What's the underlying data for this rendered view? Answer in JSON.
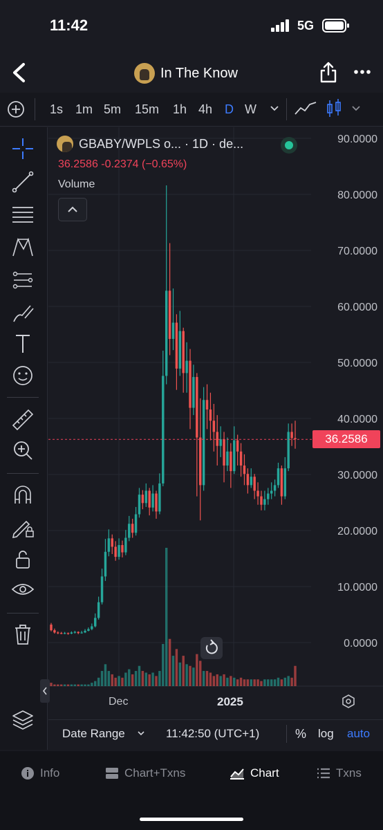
{
  "status": {
    "time": "11:42",
    "network": "5G"
  },
  "header": {
    "title": "In The Know"
  },
  "timeframes": [
    "1s",
    "1m",
    "5m",
    "15m",
    "1h",
    "4h",
    "D",
    "W"
  ],
  "active_timeframe": "D",
  "symbol_line": "GBABY/WPLS o... · 1D · de...",
  "price_line": "36.2586  -0.2374 (−0.65%)",
  "volume_label": "Volume",
  "current_price": "36.2586",
  "x_labels": {
    "dec": "Dec",
    "year": "2025"
  },
  "bottom": {
    "date_range": "Date Range",
    "time": "11:42:50 (UTC+1)",
    "percent": "%",
    "log": "log",
    "auto": "auto"
  },
  "tabs": [
    {
      "label": "Info",
      "icon": "info-icon"
    },
    {
      "label": "Chart+Txns",
      "icon": "split-icon"
    },
    {
      "label": "Chart",
      "icon": "chart-icon"
    },
    {
      "label": "Txns",
      "icon": "list-icon"
    }
  ],
  "active_tab": "Chart",
  "colors": {
    "up": "#26a69a",
    "down": "#ef5350",
    "accent": "#3d7bff",
    "price": "#f0435a"
  },
  "chart_data": {
    "type": "candlestick",
    "y_ticks": [
      "90.0000",
      "80.0000",
      "70.0000",
      "60.0000",
      "50.0000",
      "40.0000",
      "30.0000",
      "20.0000",
      "10.0000",
      "0.0000"
    ],
    "ylim": [
      0,
      90
    ],
    "candles": [
      [
        3.2,
        2.2,
        3.5,
        2.0
      ],
      [
        2.2,
        1.8,
        2.5,
        1.6
      ],
      [
        1.8,
        1.7,
        2.0,
        1.5
      ],
      [
        1.7,
        1.6,
        1.9,
        1.5
      ],
      [
        1.6,
        1.7,
        1.9,
        1.5
      ],
      [
        1.7,
        1.6,
        1.8,
        1.4
      ],
      [
        1.6,
        1.8,
        2.0,
        1.5
      ],
      [
        1.8,
        1.9,
        2.1,
        1.6
      ],
      [
        1.9,
        1.7,
        2.0,
        1.5
      ],
      [
        1.7,
        1.8,
        2.1,
        1.6
      ],
      [
        1.8,
        2.1,
        2.4,
        1.7
      ],
      [
        2.1,
        2.4,
        2.7,
        2.0
      ],
      [
        2.4,
        2.9,
        3.4,
        2.2
      ],
      [
        2.9,
        4.4,
        5.2,
        2.7
      ],
      [
        4.4,
        7.2,
        8.2,
        4.1
      ],
      [
        7.2,
        11.8,
        13.2,
        6.8
      ],
      [
        11.8,
        16.2,
        18.5,
        11.0
      ],
      [
        16.2,
        18.6,
        20.2,
        15.4
      ],
      [
        18.6,
        17.1,
        19.3,
        15.8
      ],
      [
        17.1,
        15.3,
        18.1,
        14.6
      ],
      [
        15.3,
        17.4,
        18.6,
        14.8
      ],
      [
        17.4,
        16.1,
        18.2,
        15.2
      ],
      [
        16.1,
        18.7,
        20.1,
        15.6
      ],
      [
        18.7,
        21.2,
        22.6,
        18.1
      ],
      [
        21.2,
        19.6,
        22.1,
        18.7
      ],
      [
        19.6,
        22.9,
        24.2,
        19.1
      ],
      [
        22.9,
        26.4,
        27.6,
        22.3
      ],
      [
        26.4,
        24.9,
        27.2,
        23.8
      ],
      [
        24.9,
        27.1,
        28.4,
        24.2
      ],
      [
        27.1,
        24.1,
        27.6,
        22.7
      ],
      [
        24.1,
        26.6,
        28.1,
        23.4
      ],
      [
        26.6,
        23.4,
        27.1,
        22.1
      ],
      [
        23.4,
        28.4,
        30.2,
        22.9
      ],
      [
        28.4,
        47.6,
        52.1,
        27.9
      ],
      [
        47.6,
        62.8,
        81.6,
        46.1
      ],
      [
        62.8,
        54.2,
        71.3,
        51.3
      ],
      [
        54.2,
        57.1,
        63.2,
        52.2
      ],
      [
        57.1,
        48.9,
        58.6,
        45.1
      ],
      [
        48.9,
        55.6,
        59.2,
        47.6
      ],
      [
        55.6,
        48.1,
        56.2,
        44.6
      ],
      [
        48.1,
        50.3,
        53.6,
        44.6
      ],
      [
        50.3,
        41.9,
        52.4,
        38.1
      ],
      [
        41.9,
        47.4,
        49.6,
        40.6
      ],
      [
        47.4,
        36.6,
        48.1,
        26.1
      ],
      [
        36.6,
        28.1,
        43.6,
        21.8
      ],
      [
        28.1,
        43.3,
        45.6,
        27.1
      ],
      [
        43.3,
        41.6,
        46.1,
        38.1
      ],
      [
        41.6,
        39.6,
        44.6,
        36.1
      ],
      [
        39.6,
        37.6,
        42.6,
        34.1
      ],
      [
        37.6,
        35.1,
        40.6,
        31.6
      ],
      [
        35.1,
        36.3,
        38.6,
        33.1
      ],
      [
        36.3,
        31.6,
        37.6,
        28.6
      ],
      [
        31.6,
        34.1,
        36.6,
        30.6
      ],
      [
        34.1,
        30.6,
        35.6,
        27.6
      ],
      [
        30.6,
        36.1,
        38.6,
        30.1
      ],
      [
        36.1,
        34.1,
        37.1,
        31.6
      ],
      [
        34.1,
        31.6,
        35.6,
        29.6
      ],
      [
        31.6,
        30.1,
        33.6,
        28.1
      ],
      [
        30.1,
        28.1,
        31.1,
        26.6
      ],
      [
        28.1,
        29.6,
        31.1,
        27.6
      ],
      [
        29.6,
        27.1,
        30.1,
        25.6
      ],
      [
        27.1,
        26.1,
        28.6,
        24.6
      ],
      [
        26.1,
        24.6,
        27.1,
        23.6
      ],
      [
        24.6,
        25.6,
        27.1,
        23.6
      ],
      [
        25.6,
        26.6,
        27.6,
        24.6
      ],
      [
        26.6,
        27.1,
        28.6,
        25.6
      ],
      [
        27.1,
        28.1,
        29.1,
        26.1
      ],
      [
        28.1,
        31.1,
        32.1,
        27.6
      ],
      [
        31.1,
        26.1,
        31.6,
        24.6
      ],
      [
        26.1,
        31.1,
        33.1,
        25.6
      ],
      [
        31.1,
        37.6,
        39.1,
        30.6
      ],
      [
        37.6,
        36.5,
        39.1,
        35.1
      ],
      [
        36.5,
        36.3,
        39.6,
        34.6
      ]
    ],
    "volume": [
      2,
      1,
      1,
      1,
      1,
      1,
      1,
      1,
      1,
      1,
      1,
      1,
      2,
      3,
      5,
      9,
      13,
      9,
      7,
      5,
      6,
      5,
      8,
      10,
      7,
      9,
      12,
      9,
      8,
      7,
      8,
      6,
      9,
      25,
      82,
      28,
      18,
      22,
      14,
      18,
      13,
      12,
      11,
      19,
      15,
      9,
      9,
      8,
      6,
      7,
      6,
      7,
      5,
      6,
      5,
      4,
      5,
      4,
      4,
      4,
      4,
      4,
      3,
      4,
      4,
      4,
      4,
      5,
      4,
      5,
      6,
      5,
      12
    ],
    "volume_scale_max": 82
  }
}
